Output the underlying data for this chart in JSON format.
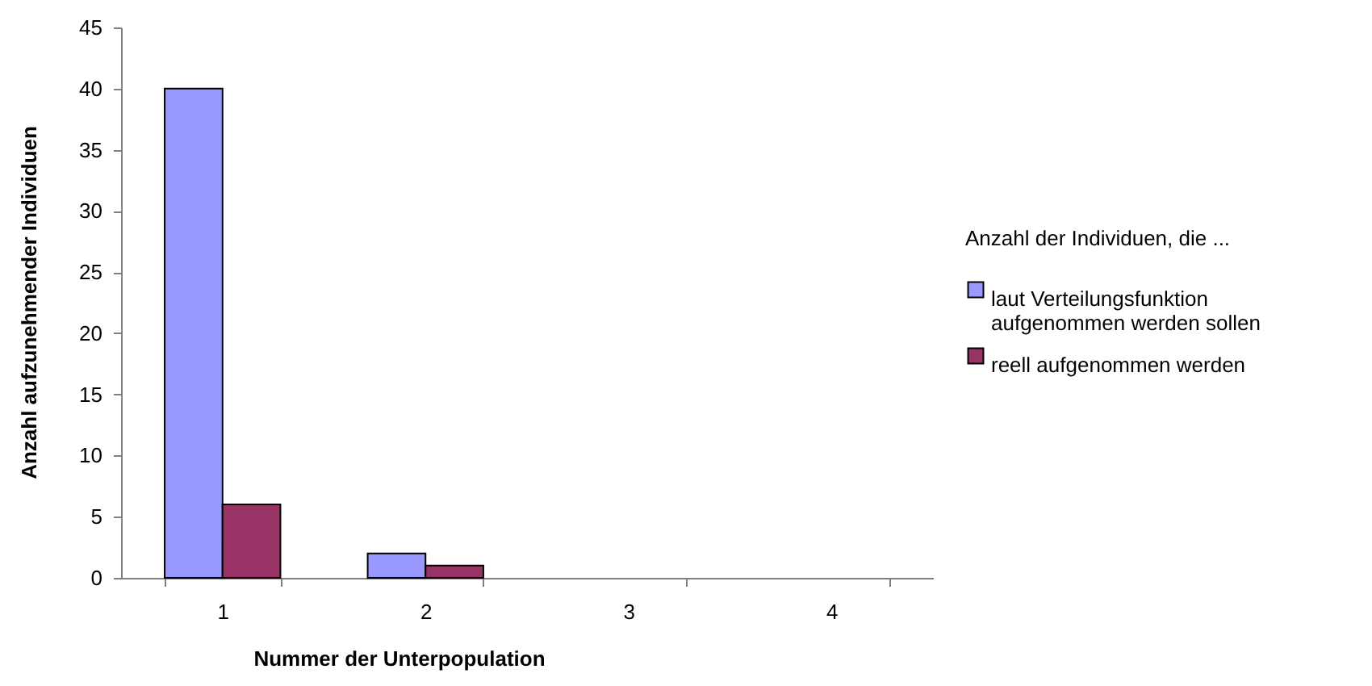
{
  "chart_data": {
    "type": "bar",
    "categories": [
      "1",
      "2",
      "3",
      "4"
    ],
    "xlabel": "Nummer der Unterpopulation",
    "ylabel": "Anzahl aufzunehmender Individuen",
    "legend_title": "Anzahl der Individuen, die ...",
    "series": [
      {
        "name": "laut Verteilungsfunktion aufgenommen werden sollen",
        "color": "#9999ff",
        "values": [
          40,
          2,
          null,
          null
        ]
      },
      {
        "name": "reell aufgenommen werden",
        "color": "#993366",
        "values": [
          6,
          1,
          null,
          null
        ]
      }
    ],
    "ylim": [
      0,
      45
    ],
    "yticks": [
      0,
      5,
      10,
      15,
      20,
      25,
      30,
      35,
      40,
      45
    ],
    "grid": false,
    "legend": "right"
  }
}
